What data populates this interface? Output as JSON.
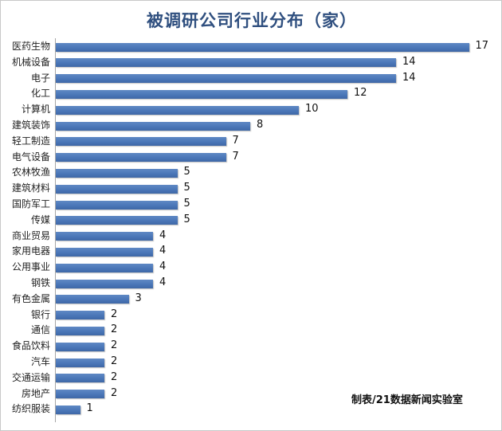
{
  "chart_data": {
    "type": "bar",
    "orientation": "horizontal",
    "title": "被调研公司行业分布（家）",
    "categories": [
      "医药生物",
      "机械设备",
      "电子",
      "化工",
      "计算机",
      "建筑装饰",
      "轻工制造",
      "电气设备",
      "农林牧渔",
      "建筑材料",
      "国防军工",
      "传媒",
      "商业贸易",
      "家用电器",
      "公用事业",
      "钢铁",
      "有色金属",
      "银行",
      "通信",
      "食品饮料",
      "汽车",
      "交通运输",
      "房地产",
      "纺织服装"
    ],
    "values": [
      17,
      14,
      14,
      12,
      10,
      8,
      7,
      7,
      5,
      5,
      5,
      5,
      4,
      4,
      4,
      4,
      3,
      2,
      2,
      2,
      2,
      2,
      2,
      1
    ],
    "xlim": [
      0,
      18
    ],
    "xlabel": "",
    "ylabel": "",
    "grid": false,
    "credit": "制表/21数据新闻实验室",
    "bar_color": "#4a76b8"
  }
}
